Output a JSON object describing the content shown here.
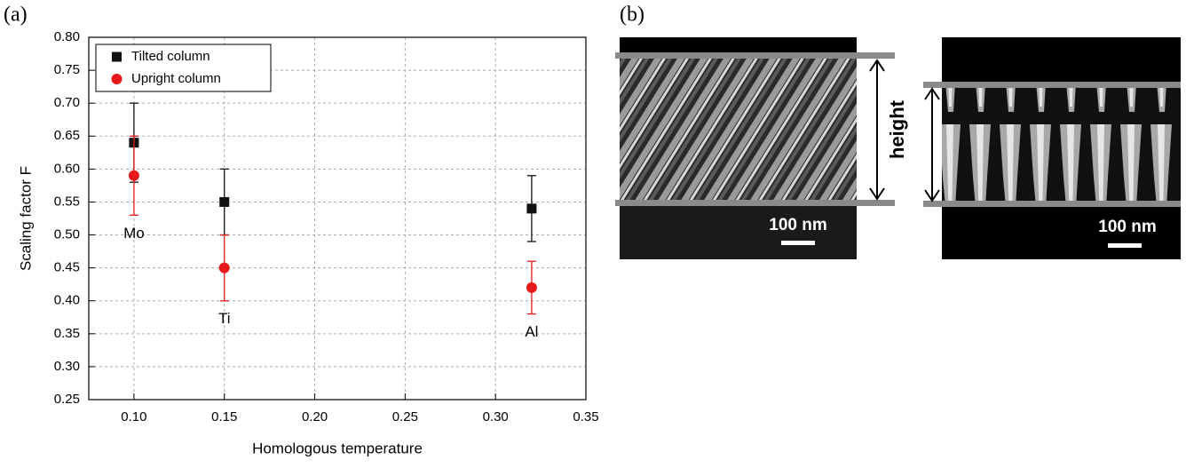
{
  "panel_labels": [
    "(a)",
    "(b)"
  ],
  "chart_data": {
    "type": "scatter",
    "x_label": "Homologous temperature",
    "y_label": "Scaling factor F",
    "x": [
      0.1,
      0.15,
      0.32
    ],
    "point_labels": [
      "Mo",
      "Ti",
      "Al"
    ],
    "series": [
      {
        "name": "Tilted column",
        "color": "#111111",
        "marker": "square",
        "values": [
          0.64,
          0.55,
          0.54
        ],
        "errors": [
          0.06,
          0.05,
          0.05
        ]
      },
      {
        "name": "Upright column",
        "color": "#e8191a",
        "marker": "circle",
        "values": [
          0.59,
          0.45,
          0.42
        ],
        "errors": [
          0.06,
          0.05,
          0.04
        ]
      }
    ],
    "xlim": [
      0.075,
      0.35
    ],
    "xticks": [
      {
        "value": 0.1,
        "label": "0.10"
      },
      0.15,
      {
        "value": 0.2,
        "label": "0.20"
      },
      0.25,
      {
        "value": 0.3,
        "label": "0.30"
      },
      0.35
    ],
    "ylim": [
      0.25,
      0.8
    ],
    "yticks": [
      0.25,
      {
        "value": 0.3,
        "label": "0.30"
      },
      0.35,
      {
        "value": 0.4,
        "label": "0.40"
      },
      0.45,
      {
        "value": 0.5,
        "label": "0.50"
      },
      0.55,
      {
        "value": 0.6,
        "label": "0.60"
      },
      0.65,
      {
        "value": 0.7,
        "label": "0.70"
      },
      0.75,
      {
        "value": 0.8,
        "label": "0.80"
      }
    ],
    "grid": true,
    "legend": "upper left"
  },
  "images": {
    "left": {
      "label": "height",
      "scale": "100 nm"
    },
    "right": {
      "scale": "100 nm"
    }
  }
}
